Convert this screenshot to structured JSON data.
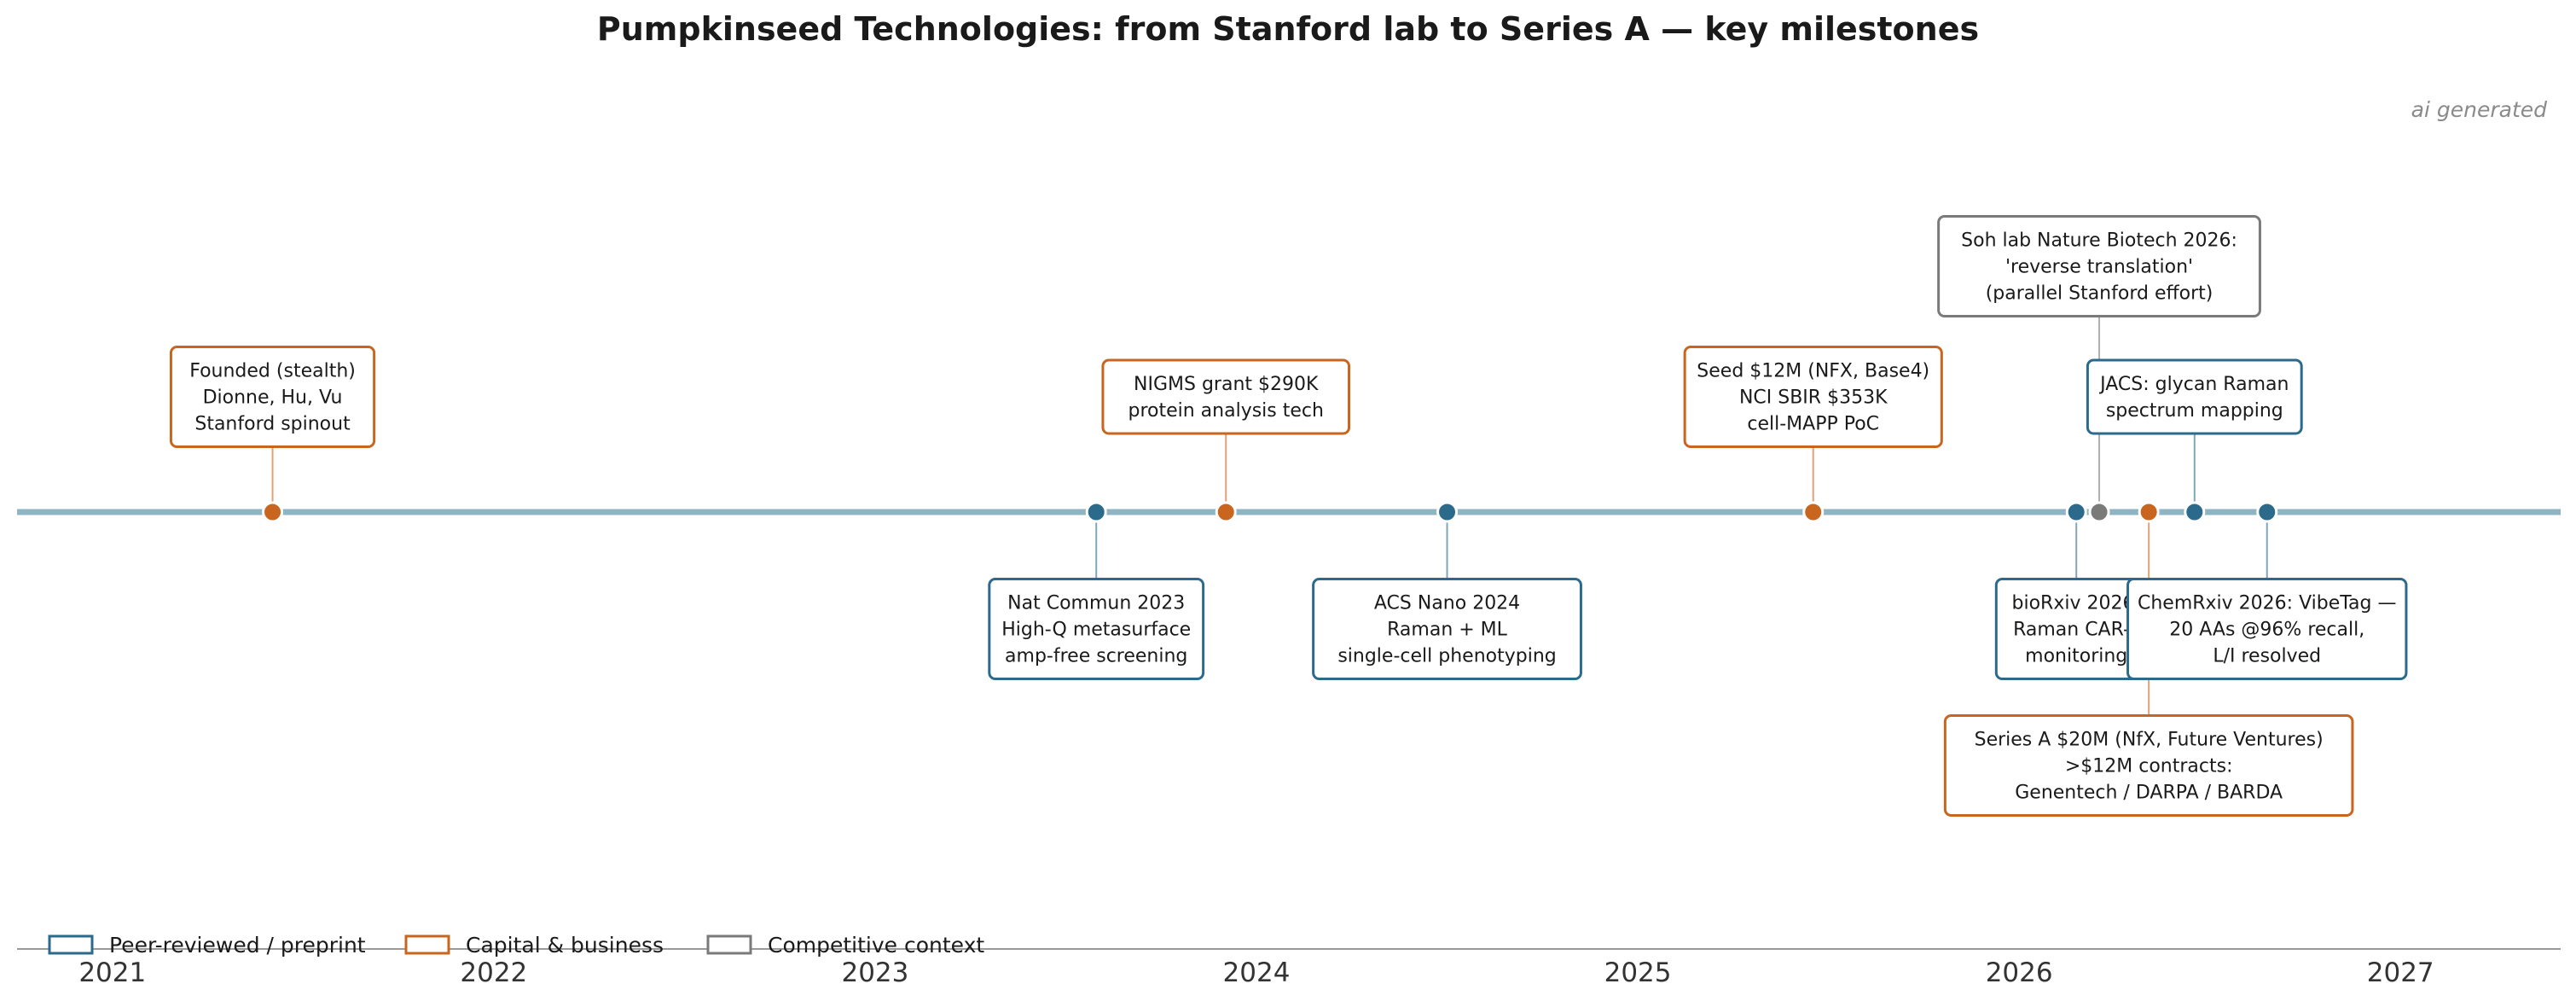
{
  "chart_data": {
    "type": "timeline",
    "title": "Pumpkinseed Technologies: from Stanford lab to Series A — key milestones",
    "watermark": "ai generated",
    "xlim": [
      2020.75,
      2027.42
    ],
    "ticks": [
      {
        "value": 2021,
        "label": "2021"
      },
      {
        "value": 2022,
        "label": "2022"
      },
      {
        "value": 2023,
        "label": "2023"
      },
      {
        "value": 2024,
        "label": "2024"
      },
      {
        "value": 2025,
        "label": "2025"
      },
      {
        "value": 2026,
        "label": "2026"
      },
      {
        "value": 2027,
        "label": "2027"
      }
    ],
    "categories": {
      "peer": {
        "label": "Peer-reviewed / preprint",
        "color": "#2c6a8c"
      },
      "capital": {
        "label": "Capital & business",
        "color": "#c8661f"
      },
      "competitive": {
        "label": "Competitive context",
        "color": "#7a7a7a"
      }
    },
    "legend_order": [
      "peer",
      "capital",
      "competitive"
    ],
    "legend_position": "bottom-left",
    "events": [
      {
        "x": 2021.42,
        "category": "capital",
        "level": 1,
        "lines": [
          "Founded (stealth)",
          "Dionne, Hu, Vu",
          "Stanford spinout"
        ]
      },
      {
        "x": 2023.58,
        "category": "peer",
        "level": -1,
        "lines": [
          "Nat Commun 2023",
          "High-Q metasurface",
          "amp-free screening"
        ]
      },
      {
        "x": 2023.92,
        "category": "capital",
        "level": 1,
        "lines": [
          "NIGMS grant $290K",
          "protein analysis tech"
        ]
      },
      {
        "x": 2024.5,
        "category": "peer",
        "level": -1,
        "lines": [
          "ACS Nano 2024",
          "Raman + ML",
          "single-cell phenotyping"
        ]
      },
      {
        "x": 2025.46,
        "category": "capital",
        "level": 1,
        "lines": [
          "Seed $12M (NFX, Base4)",
          "NCI SBIR $353K",
          "cell-MAPP PoC"
        ]
      },
      {
        "x": 2026.15,
        "category": "peer",
        "level": -1,
        "lines": [
          "bioRxiv 2026:",
          "Raman CAR-T",
          "monitoring"
        ]
      },
      {
        "x": 2026.21,
        "category": "competitive",
        "level": 2,
        "lines": [
          "Soh lab Nature Biotech 2026:",
          "'reverse translation'",
          "(parallel Stanford effort)"
        ]
      },
      {
        "x": 2026.34,
        "category": "capital",
        "level": -2,
        "lines": [
          "Series A $20M (NfX, Future Ventures)",
          ">$12M contracts:",
          "Genentech / DARPA / BARDA"
        ]
      },
      {
        "x": 2026.46,
        "category": "peer",
        "level": 1,
        "lines": [
          "JACS: glycan Raman",
          "spectrum mapping"
        ]
      },
      {
        "x": 2026.65,
        "category": "peer",
        "level": -1,
        "lines": [
          "ChemRxiv 2026: VibeTag —",
          "20 AAs @96% recall,",
          "L/I resolved"
        ]
      }
    ]
  }
}
